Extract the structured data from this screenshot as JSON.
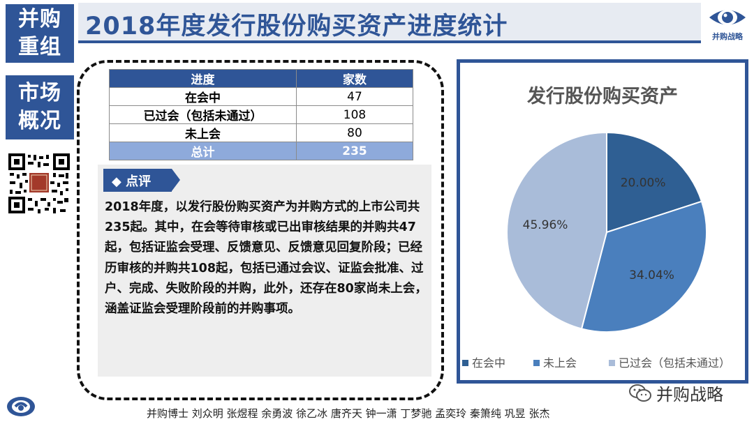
{
  "nav": {
    "section1_line1": "并购",
    "section1_line2": "重组",
    "section2_line1": "市场",
    "section2_line2": "概况"
  },
  "title": "2018年度发行股份购买资产进度统计",
  "logo_text": "并购战略",
  "table": {
    "headers": [
      "进度",
      "家数"
    ],
    "rows": [
      {
        "label": "在会中",
        "value": "47"
      },
      {
        "label": "已过会（包括未通过）",
        "value": "108"
      },
      {
        "label": "未上会",
        "value": "80"
      }
    ],
    "total": {
      "label": "总计",
      "value": "235"
    }
  },
  "comment": {
    "tag": "◆ 点评",
    "text": "2018年度，以发行股份购买资产为并购方式的上市公司共235起。其中，在会等待审核或已出审核结果的并购共47起，包括证监会受理、反馈意见、反馈意见回复阶段；已经历审核的并购共108起，包括已通过会议、证监会批准、过户、完成、失败阶段的并购，此外，还存在80家尚未上会，涵盖证监会受理阶段前的并购事项。"
  },
  "chart_data": {
    "type": "pie",
    "title": "发行股份购买资产",
    "series": [
      {
        "name": "在会中",
        "value": 20.0,
        "label": "20.00%",
        "color": "#2f5f93"
      },
      {
        "name": "未上会",
        "value": 34.04,
        "label": "34.04%",
        "color": "#4a7fbd"
      },
      {
        "name": "已过会（包括未通过）",
        "value": 45.96,
        "label": "45.96%",
        "color": "#a9bcd9"
      }
    ],
    "legend_position": "bottom"
  },
  "wechat_label": "并购战略",
  "authors": "并购博士 刘众明 张煜程 余勇波 徐乙冰 唐齐天 钟一潇 丁梦驰 孟奕玲 秦箫纯 巩昱 张杰"
}
